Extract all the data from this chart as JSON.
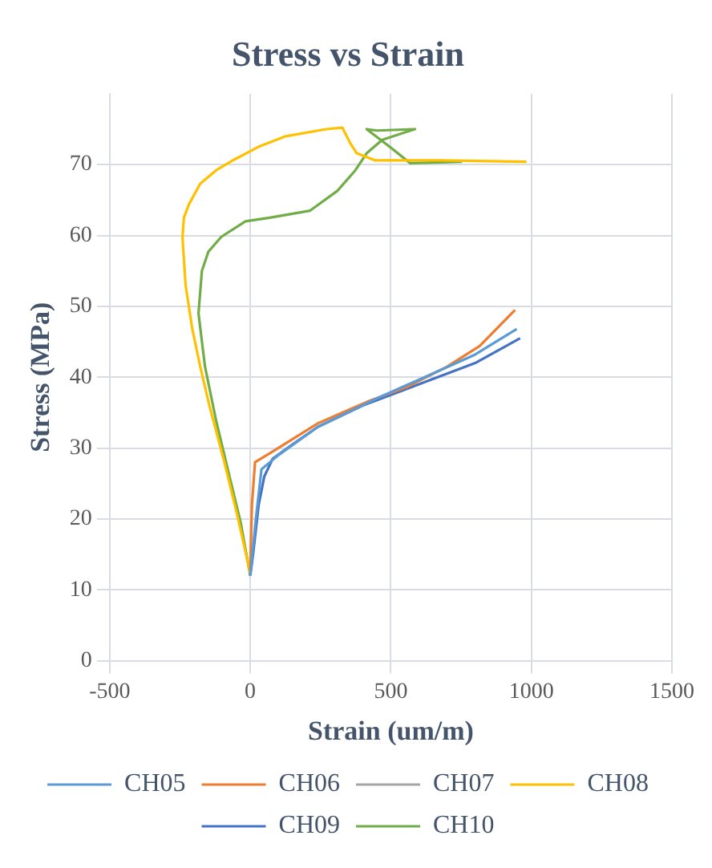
{
  "chart_data": {
    "type": "line",
    "title": "Stress vs Strain",
    "xlabel": "Strain (um/m)",
    "ylabel": "Stress (MPa)",
    "xlim": [
      -500,
      1500
    ],
    "xticks": [
      -500,
      0,
      500,
      1000,
      1500
    ],
    "ylim": [
      0,
      80
    ],
    "yticks": [
      0,
      10,
      20,
      30,
      40,
      50,
      60,
      70
    ],
    "grid": true,
    "legend": "bottom",
    "marker": "none",
    "line_style": "solid",
    "series": [
      {
        "name": "CH05",
        "color": "#5b9bd5",
        "x": [
          0,
          20,
          40,
          100,
          241,
          450,
          620,
          800,
          948
        ],
        "values": [
          12,
          20,
          27,
          29,
          33,
          37,
          40,
          43.2,
          46.8
        ]
      },
      {
        "name": "CH06",
        "color": "#ed7d31",
        "x": [
          0,
          6,
          17,
          75,
          241,
          414,
          557,
          701,
          816,
          942
        ],
        "values": [
          12.8,
          22,
          28,
          29.4,
          33.5,
          36.5,
          38.6,
          41.5,
          44.4,
          49.5
        ]
      },
      {
        "name": "CH07",
        "color": "#a5a5a5"
      },
      {
        "name": "CH08",
        "color": "#ffc000",
        "x": [
          0,
          -46,
          -92,
          -144,
          -178,
          -207,
          -230,
          -241,
          -236,
          -218,
          -178,
          -121,
          -57,
          29,
          126,
          270,
          328,
          356,
          379,
          443,
          672,
          983
        ],
        "values": [
          12.4,
          20.5,
          28,
          35.8,
          41.5,
          47,
          53,
          59.7,
          62.5,
          64.4,
          67.3,
          69.2,
          70.7,
          72.5,
          74,
          75,
          75.2,
          73,
          71.6,
          70.6,
          70.6,
          70.4
        ]
      },
      {
        "name": "CH09",
        "color": "#4472c4",
        "x": [
          0,
          10,
          30,
          50,
          80,
          150,
          241,
          400,
          600,
          800,
          960
        ],
        "values": [
          12,
          15,
          22,
          26,
          28.5,
          30.5,
          33,
          36,
          39,
          42,
          45.5
        ]
      },
      {
        "name": "CH10",
        "color": "#70ad47",
        "x": [
          0,
          -34,
          -75,
          -121,
          -161,
          -184,
          -172,
          -149,
          -103,
          -17,
          69,
          213,
          310,
          374,
          414,
          470,
          586,
          450,
          414,
          500,
          569,
          753
        ],
        "values": [
          12,
          19.5,
          26.2,
          33.8,
          41.5,
          49,
          55,
          57.7,
          59.8,
          62,
          62.5,
          63.5,
          66.3,
          69.2,
          71.6,
          73.5,
          75,
          74.8,
          75,
          72.4,
          70.2,
          70.4
        ]
      }
    ]
  }
}
